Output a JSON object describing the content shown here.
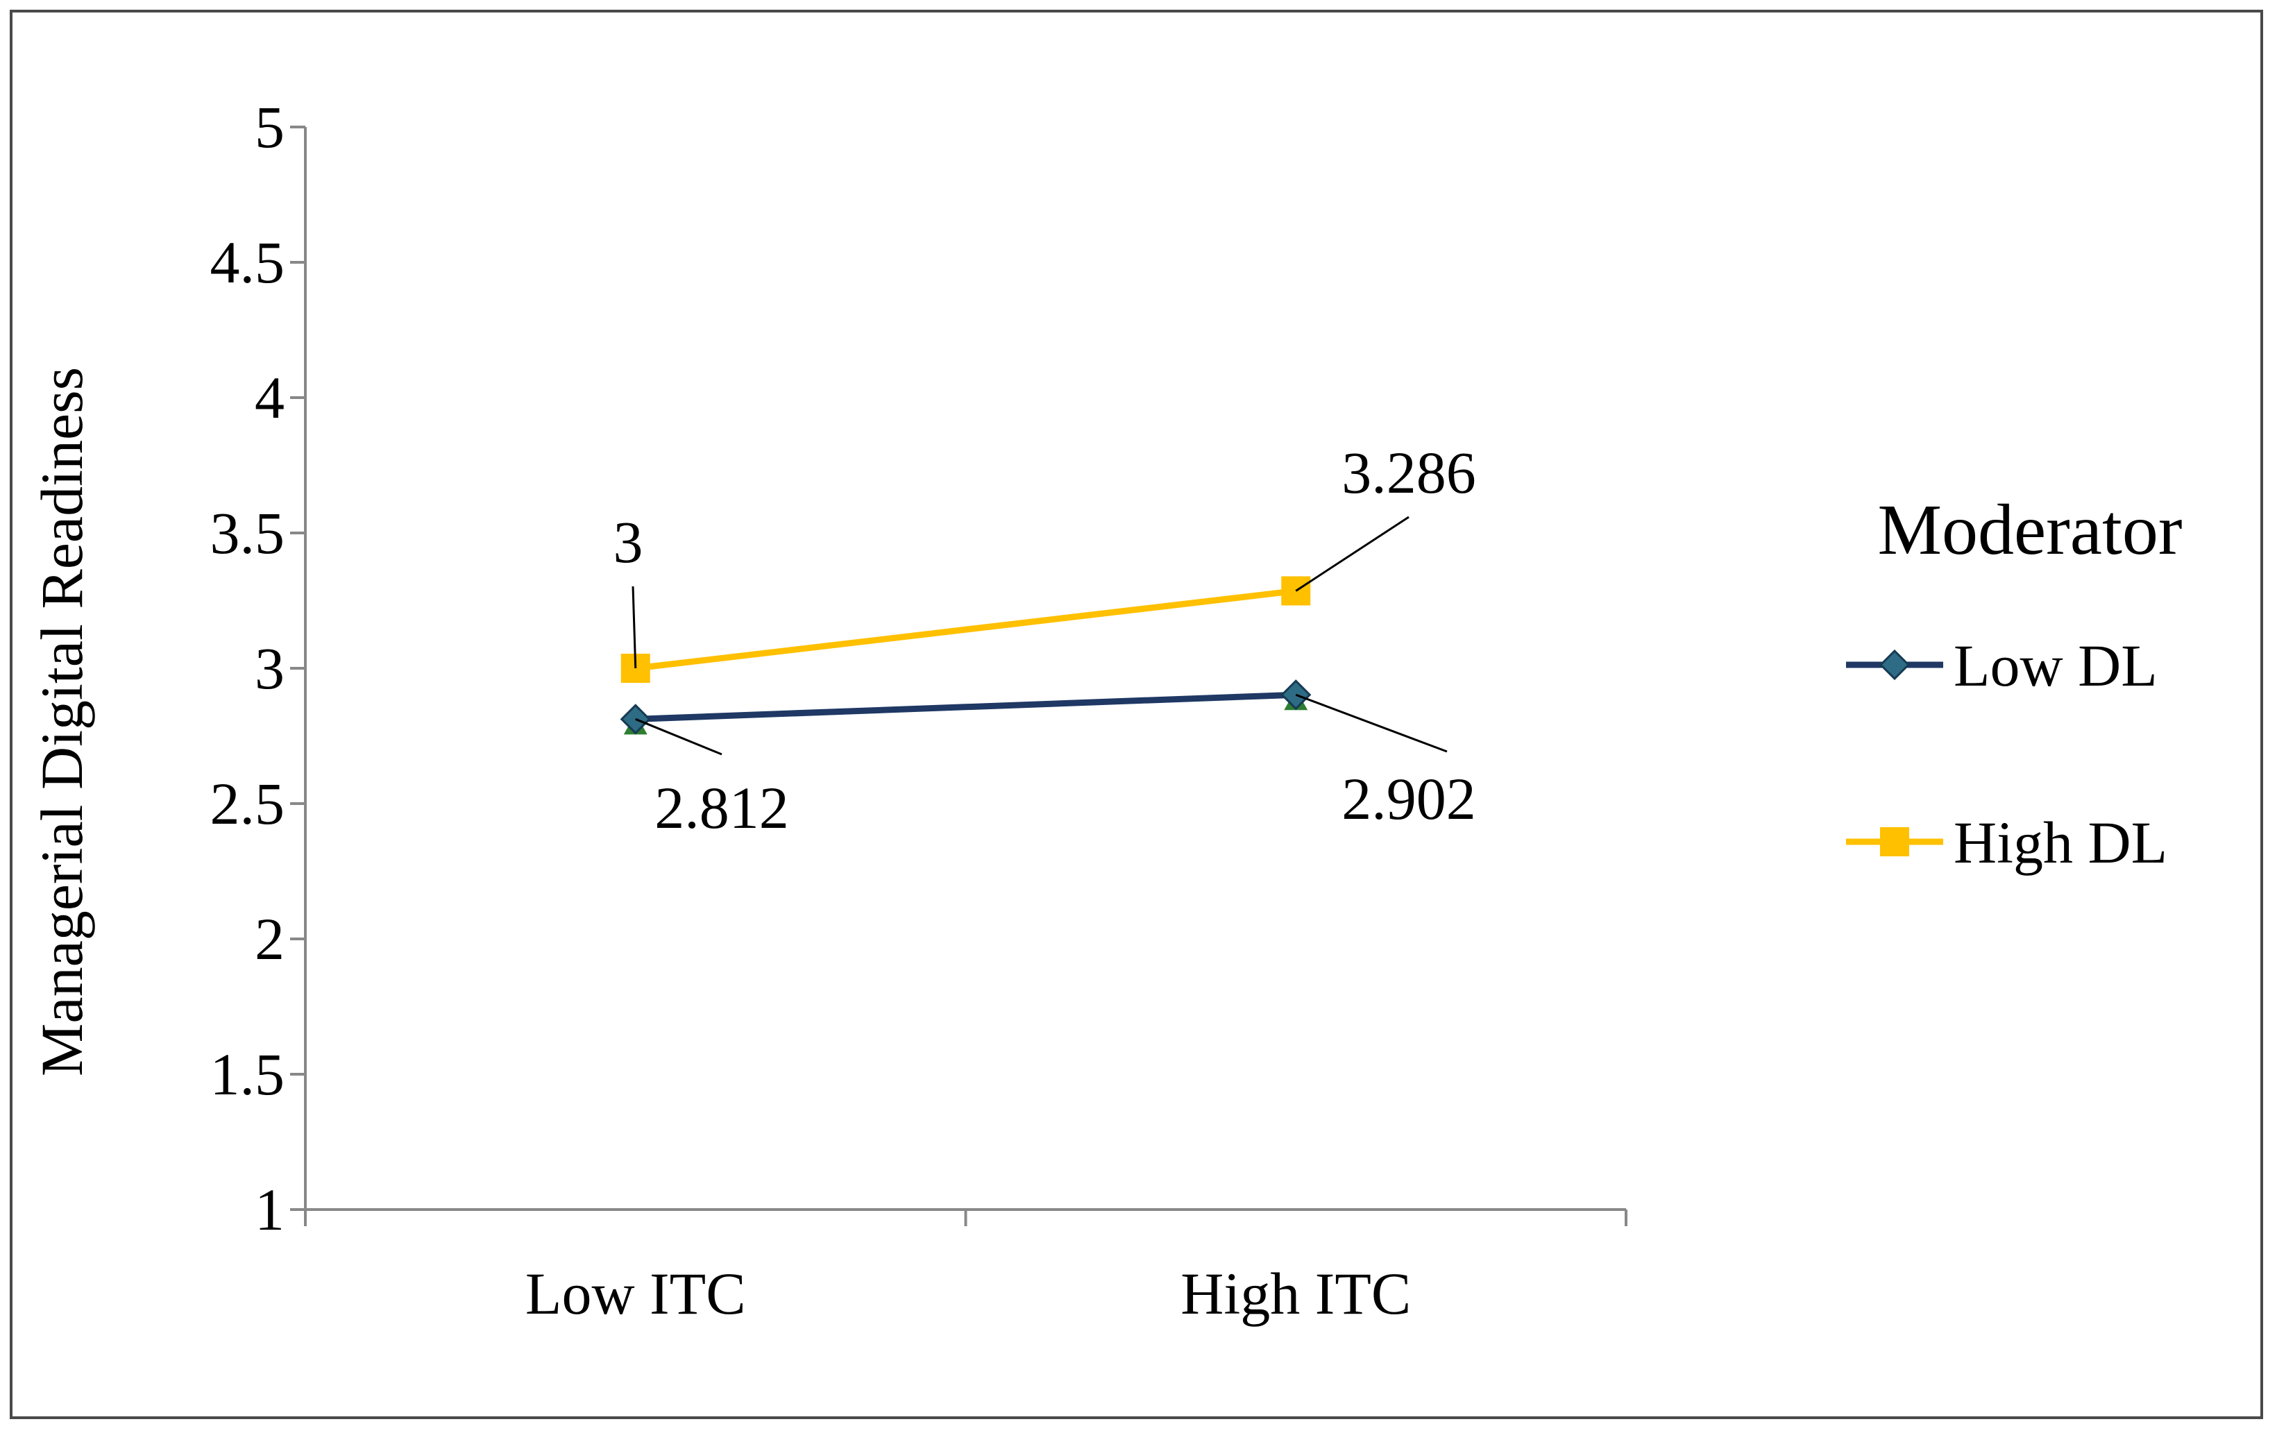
{
  "chart_data": {
    "type": "line",
    "title": "",
    "xlabel": "",
    "ylabel": "Managerial  Digital Readiness",
    "categories": [
      "Low ITC",
      "High ITC"
    ],
    "ylim": [
      1,
      5
    ],
    "yticks": [
      "1",
      "1.5",
      "2",
      "2.5",
      "3",
      "3.5",
      "4",
      "4.5",
      "5"
    ],
    "grid": false,
    "legend": {
      "title": "Moderator",
      "position": "right"
    },
    "series": [
      {
        "name": "Low DL",
        "values": [
          2.812,
          2.902
        ],
        "labels": [
          "2.812",
          "2.902"
        ],
        "color": "#1f3864",
        "marker": "diamond"
      },
      {
        "name": "High DL",
        "values": [
          3,
          3.286
        ],
        "labels": [
          "3",
          "3.286"
        ],
        "color": "#ffc000",
        "marker": "square"
      }
    ],
    "marker_outline_color": "#2e6b84",
    "hidden_marker_color": "#2e7d32"
  }
}
